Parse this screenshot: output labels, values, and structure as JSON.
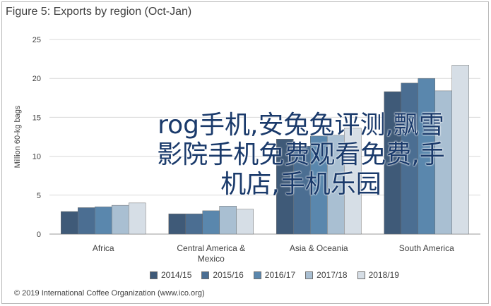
{
  "header": {
    "title": "Figure 5: Exports by region (Oct-Jan)"
  },
  "chart_data": {
    "type": "bar",
    "title": "Figure 5: Exports by region (Oct-Jan)",
    "ylabel": "Million 60-kg bags",
    "xlabel": "",
    "ylim": [
      0,
      25
    ],
    "yticks": [
      0,
      5,
      10,
      15,
      20,
      25
    ],
    "grid": true,
    "legend_position": "bottom",
    "categories": [
      "Africa",
      "Central America & Mexico",
      "Asia & Oceania",
      "South America"
    ],
    "category_labels": [
      [
        "Africa"
      ],
      [
        "Central America &",
        "Mexico"
      ],
      [
        "Asia & Oceania"
      ],
      [
        "South America"
      ]
    ],
    "series": [
      {
        "name": "2014/15",
        "color": "#3f5a78",
        "values": [
          2.9,
          2.6,
          12.2,
          18.3
        ]
      },
      {
        "name": "2015/16",
        "color": "#4b6e92",
        "values": [
          3.4,
          2.6,
          11.3,
          19.4
        ]
      },
      {
        "name": "2016/17",
        "color": "#5a87ad",
        "values": [
          3.5,
          3.0,
          12.6,
          20.0
        ]
      },
      {
        "name": "2017/18",
        "color": "#a9bfd2",
        "values": [
          3.7,
          3.6,
          12.7,
          18.4
        ]
      },
      {
        "name": "2018/19",
        "color": "#d6dee6",
        "values": [
          4.0,
          3.2,
          13.6,
          21.7
        ]
      }
    ]
  },
  "overlay": {
    "text": "rog手机,安兔兔评测,飘雪影院手机免费观看免费,手机店,手机乐园"
  },
  "footer": {
    "text": "© 2019 International Coffee Organization (www.ico.org)"
  }
}
